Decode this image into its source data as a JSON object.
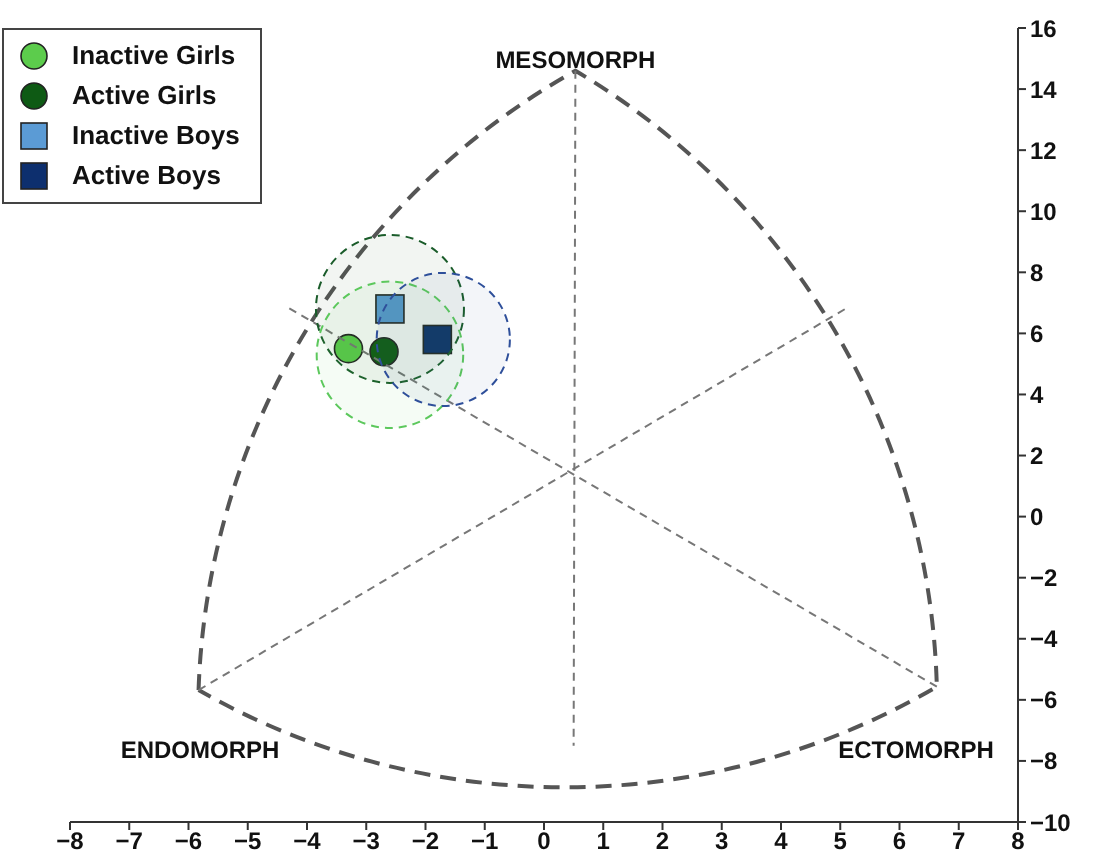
{
  "chart_data": {
    "type": "scatter",
    "annotations": [
      "MESOMORPH",
      "ENDOMORPH",
      "ECTOMORPH"
    ],
    "xlim": [
      -8,
      8
    ],
    "xticks": [
      -8,
      -7,
      -6,
      -5,
      -4,
      -3,
      -2,
      -1,
      0,
      1,
      2,
      3,
      4,
      5,
      6,
      7,
      8
    ],
    "ylim": [
      -10,
      16
    ],
    "yticks": [
      -10,
      -8,
      -6,
      -4,
      -2,
      0,
      2,
      4,
      6,
      8,
      10,
      12,
      14,
      16
    ],
    "legend": "top left",
    "series": [
      {
        "name": "Inactive Girls",
        "color": "#5ccc4c",
        "marker": "circle",
        "x": [
          -3.3
        ],
        "values": [
          5.5
        ]
      },
      {
        "name": "Active Girls",
        "color": "#0e5a14",
        "marker": "circle",
        "x": [
          -2.7
        ],
        "values": [
          5.4
        ]
      },
      {
        "name": "Inactive Boys",
        "color": "#5b9bd5",
        "marker": "square",
        "x": [
          -2.6
        ],
        "values": [
          6.8
        ]
      },
      {
        "name": "Active Boys",
        "color": "#0d2f6e",
        "marker": "square",
        "x": [
          -1.8
        ],
        "values": [
          5.8
        ]
      },
      {
        "type": "line",
        "color": "#777777",
        "line_style": "dashed",
        "marker": "none",
        "x": [
          0.53,
          0.5
        ],
        "values": [
          14.6,
          -7.5
        ]
      },
      {
        "type": "line",
        "color": "#777777",
        "line_style": "dashed",
        "marker": "none",
        "x": [
          -5.83,
          5.11
        ],
        "values": [
          -5.68,
          6.83
        ]
      },
      {
        "type": "line",
        "color": "#777777",
        "line_style": "dashed",
        "marker": "none",
        "x": [
          6.63,
          -4.35
        ],
        "values": [
          -5.57,
          6.88
        ]
      },
      {
        "type": "bubble",
        "x": [
          -2.6,
          -2.6,
          -1.7
        ],
        "values": [
          6.8,
          5.3,
          5.8
        ],
        "sizes": [
          1,
          0.98,
          0.81
        ],
        "colors": [
          "#1a5c2a",
          "#5cc85c",
          "#2e4f9a"
        ],
        "line_style": "dashed"
      }
    ]
  }
}
